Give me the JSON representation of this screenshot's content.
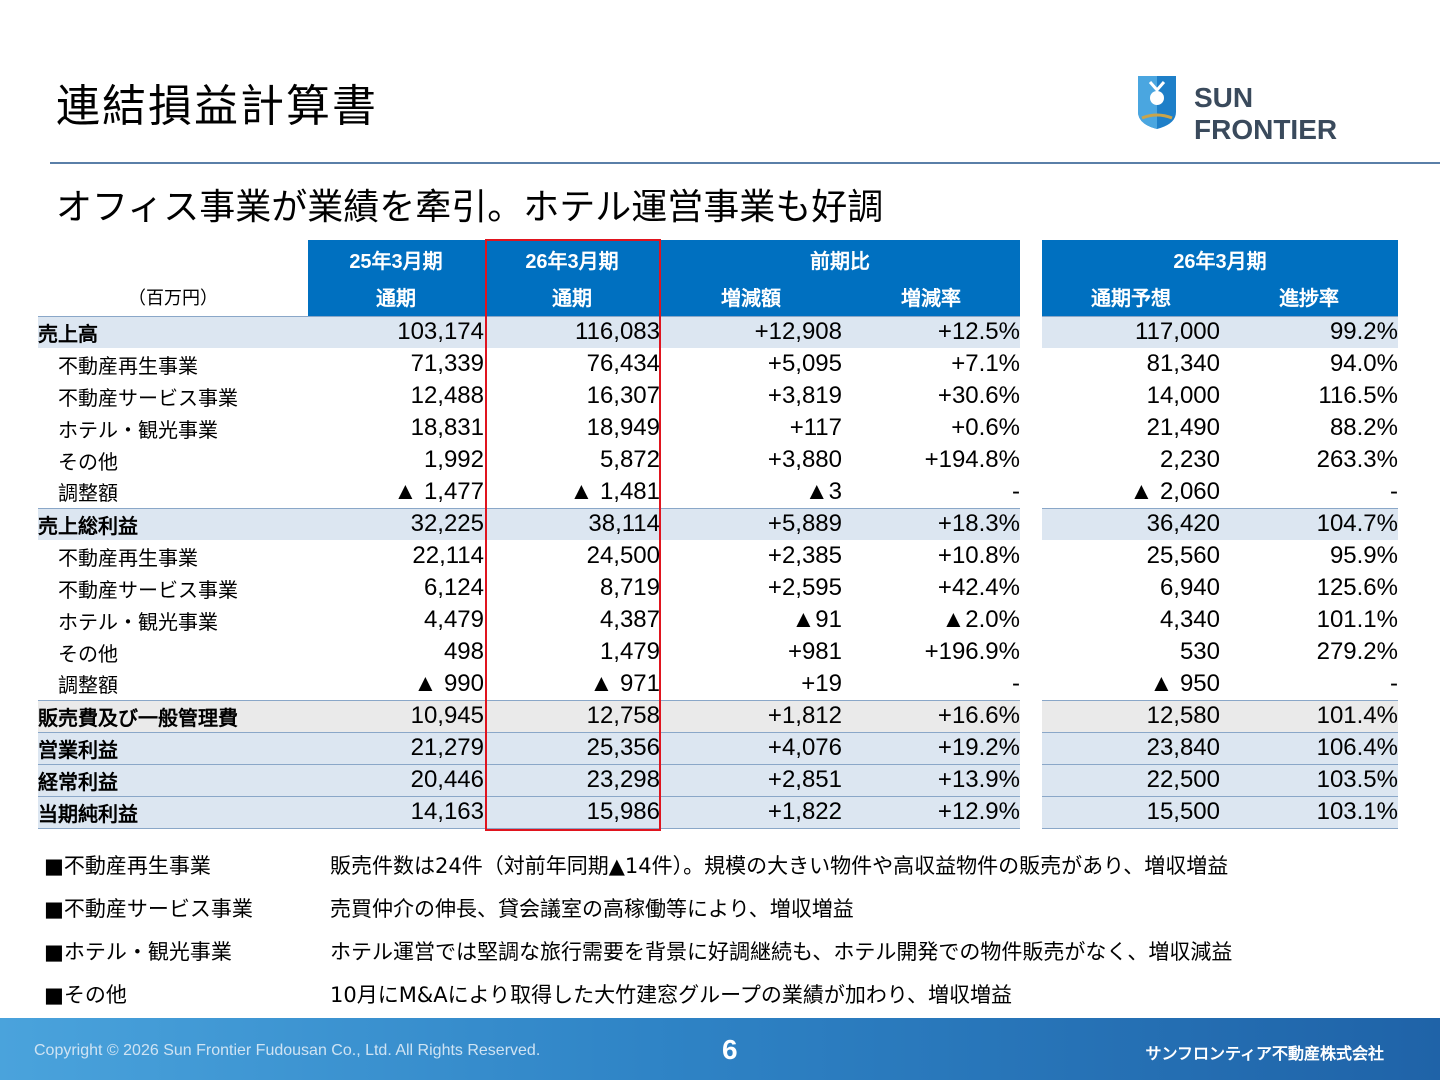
{
  "header": {
    "title": "連結損益計算書",
    "logo_text": "SUN FRONTIER",
    "subtitle": "オフィス事業が業績を牽引。ホテル運営事業も好調"
  },
  "table": {
    "unit": "（百万円）",
    "group_headers": [
      "25年3月期",
      "26年3月期",
      "前期比",
      "26年3月期"
    ],
    "sub_headers": [
      "通期",
      "通期",
      "増減額",
      "増減率",
      "通期予想",
      "進捗率"
    ],
    "rows": [
      {
        "label": "売上高",
        "level": "major",
        "v": [
          "103,174",
          "116,083",
          "+12,908",
          "+12.5%",
          "117,000",
          "99.2%"
        ]
      },
      {
        "label": "不動産再生事業",
        "level": "sub",
        "v": [
          "71,339",
          "76,434",
          "+5,095",
          "+7.1%",
          "81,340",
          "94.0%"
        ]
      },
      {
        "label": "不動産サービス事業",
        "level": "sub",
        "v": [
          "12,488",
          "16,307",
          "+3,819",
          "+30.6%",
          "14,000",
          "116.5%"
        ]
      },
      {
        "label": "ホテル・観光事業",
        "level": "sub",
        "v": [
          "18,831",
          "18,949",
          "+117",
          "+0.6%",
          "21,490",
          "88.2%"
        ]
      },
      {
        "label": "その他",
        "level": "sub",
        "v": [
          "1,992",
          "5,872",
          "+3,880",
          "+194.8%",
          "2,230",
          "263.3%"
        ]
      },
      {
        "label": "調整額",
        "level": "sub",
        "v": [
          "▲ 1,477",
          "▲ 1,481",
          "▲3",
          "-",
          "▲ 2,060",
          "-"
        ]
      },
      {
        "label": "売上総利益",
        "level": "major",
        "v": [
          "32,225",
          "38,114",
          "+5,889",
          "+18.3%",
          "36,420",
          "104.7%"
        ]
      },
      {
        "label": "不動産再生事業",
        "level": "sub",
        "v": [
          "22,114",
          "24,500",
          "+2,385",
          "+10.8%",
          "25,560",
          "95.9%"
        ]
      },
      {
        "label": "不動産サービス事業",
        "level": "sub",
        "v": [
          "6,124",
          "8,719",
          "+2,595",
          "+42.4%",
          "6,940",
          "125.6%"
        ]
      },
      {
        "label": "ホテル・観光事業",
        "level": "sub",
        "v": [
          "4,479",
          "4,387",
          "▲91",
          "▲2.0%",
          "4,340",
          "101.1%"
        ]
      },
      {
        "label": "その他",
        "level": "sub",
        "v": [
          "498",
          "1,479",
          "+981",
          "+196.9%",
          "530",
          "279.2%"
        ]
      },
      {
        "label": "調整額",
        "level": "sub",
        "v": [
          "▲ 990",
          "▲ 971",
          "+19",
          "-",
          "▲ 950",
          "-"
        ]
      },
      {
        "label": "販売費及び一般管理費",
        "level": "grey",
        "v": [
          "10,945",
          "12,758",
          "+1,812",
          "+16.6%",
          "12,580",
          "101.4%"
        ]
      },
      {
        "label": "営業利益",
        "level": "major",
        "v": [
          "21,279",
          "25,356",
          "+4,076",
          "+19.2%",
          "23,840",
          "106.4%"
        ]
      },
      {
        "label": "経常利益",
        "level": "major",
        "v": [
          "20,446",
          "23,298",
          "+2,851",
          "+13.9%",
          "22,500",
          "103.5%"
        ]
      },
      {
        "label": "当期純利益",
        "level": "major",
        "v": [
          "14,163",
          "15,986",
          "+1,822",
          "+12.9%",
          "15,500",
          "103.1%"
        ]
      }
    ]
  },
  "notes": [
    {
      "key": "■不動産再生事業",
      "text": "販売件数は24件（対前年同期▲14件）。規模の大きい物件や高収益物件の販売があり、増収増益"
    },
    {
      "key": "■不動産サービス事業",
      "text": "売買仲介の伸長、貸会議室の高稼働等により、増収増益"
    },
    {
      "key": "■ホテル・観光事業",
      "text": "ホテル運営では堅調な旅行需要を背景に好調継続も、ホテル開発での物件販売がなく、増収減益"
    },
    {
      "key": "■その他",
      "text": "10月にM&Aにより取得した大竹建窓グループの業績が加わり、増収増益"
    }
  ],
  "footer": {
    "copyright": "Copyright © 2026 Sun Frontier Fudousan Co., Ltd. All Rights Reserved.",
    "page_number": "6",
    "company": "サンフロンティア不動産株式会社"
  },
  "colors": {
    "header_blue": "#0070c0",
    "major_row": "#dce6f1",
    "highlight_border": "#e0141e"
  }
}
